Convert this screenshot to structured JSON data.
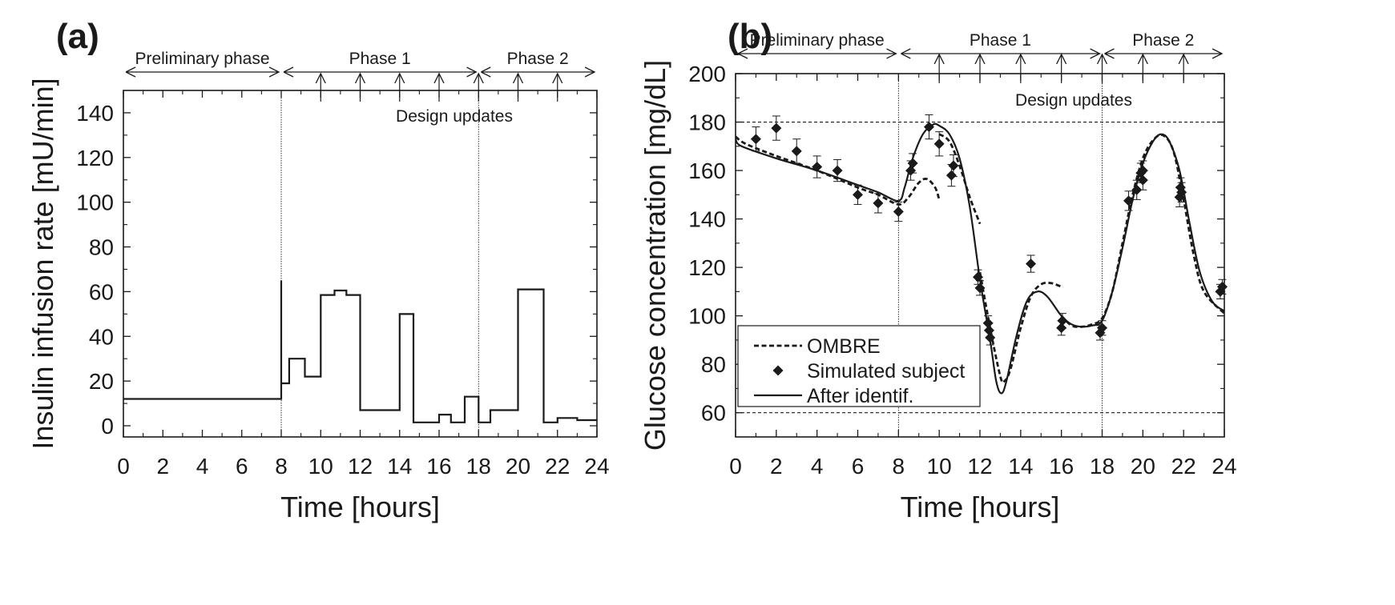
{
  "chart_data": [
    {
      "panel": "(a)",
      "type": "line",
      "step": true,
      "xlabel": "Time [hours]",
      "ylabel": "Insulin infusion rate [mU/min]",
      "xlim": [
        0,
        24
      ],
      "ylim": [
        -5,
        150
      ],
      "xticks": [
        0,
        2,
        4,
        6,
        8,
        10,
        12,
        14,
        16,
        18,
        20,
        22,
        24
      ],
      "yticks": [
        0,
        20,
        40,
        60,
        80,
        100,
        120,
        140
      ],
      "phases": [
        {
          "label": "Preliminary phase",
          "from": 0,
          "to": 8
        },
        {
          "label": "Phase 1",
          "from": 8,
          "to": 18
        },
        {
          "label": "Phase 2",
          "from": 18,
          "to": 24
        }
      ],
      "phase_boundaries": [
        8,
        18
      ],
      "design_update_times": [
        10,
        12,
        14,
        16,
        18,
        20,
        22
      ],
      "annotation": "Design updates",
      "profile": [
        [
          0,
          12
        ],
        [
          8,
          12
        ],
        [
          8,
          65
        ],
        [
          8,
          19
        ],
        [
          8.4,
          19
        ],
        [
          8.4,
          30
        ],
        [
          9.2,
          30
        ],
        [
          9.2,
          22
        ],
        [
          10,
          22
        ],
        [
          10,
          58.5
        ],
        [
          10.7,
          58.5
        ],
        [
          10.7,
          60.5
        ],
        [
          11.3,
          60.5
        ],
        [
          11.3,
          58.5
        ],
        [
          12,
          58.5
        ],
        [
          12,
          7
        ],
        [
          14,
          7
        ],
        [
          14,
          50
        ],
        [
          14.7,
          50
        ],
        [
          14.7,
          1.5
        ],
        [
          16,
          1.5
        ],
        [
          16,
          5
        ],
        [
          16.6,
          5
        ],
        [
          16.6,
          1.5
        ],
        [
          17.3,
          1.5
        ],
        [
          17.3,
          13
        ],
        [
          18,
          13
        ],
        [
          18,
          1.5
        ],
        [
          18.6,
          1.5
        ],
        [
          18.6,
          7
        ],
        [
          20,
          7
        ],
        [
          20,
          61
        ],
        [
          21.3,
          61
        ],
        [
          21.3,
          1.5
        ],
        [
          22,
          1.5
        ],
        [
          22,
          3.5
        ],
        [
          23,
          3.5
        ],
        [
          23,
          2.5
        ],
        [
          24,
          2.5
        ]
      ]
    },
    {
      "panel": "(b)",
      "type": "line",
      "xlabel": "Time [hours]",
      "ylabel": "Glucose concentration [mg/dL]",
      "xlim": [
        0,
        24
      ],
      "ylim": [
        50,
        200
      ],
      "xticks": [
        0,
        2,
        4,
        6,
        8,
        10,
        12,
        14,
        16,
        18,
        20,
        22,
        24
      ],
      "yticks": [
        60,
        80,
        100,
        120,
        140,
        160,
        180,
        200
      ],
      "thresholds": [
        60,
        180
      ],
      "phases": [
        {
          "label": "Preliminary phase",
          "from": 0,
          "to": 8
        },
        {
          "label": "Phase 1",
          "from": 8,
          "to": 18
        },
        {
          "label": "Phase 2",
          "from": 18,
          "to": 24
        }
      ],
      "phase_boundaries": [
        8,
        18
      ],
      "design_update_times": [
        10,
        12,
        14,
        16,
        18,
        20,
        22
      ],
      "annotation": "Design updates",
      "legend_position": "bottom-left",
      "legend": [
        {
          "label": "OMBRE",
          "style": "dashed"
        },
        {
          "label": "Simulated subject",
          "style": "diamond"
        },
        {
          "label": "After identif.",
          "style": "solid"
        }
      ],
      "series": [
        {
          "name": "OMBRE",
          "style": "dashed",
          "segments": [
            [
              [
                0,
                174
              ],
              [
                0.5,
                171
              ],
              [
                2,
                166
              ],
              [
                4,
                160
              ],
              [
                6,
                153
              ],
              [
                7,
                150
              ],
              [
                8,
                146
              ],
              [
                8.5,
                149
              ],
              [
                9,
                155
              ],
              [
                9.4,
                156.5
              ],
              [
                9.8,
                153
              ],
              [
                10,
                148
              ]
            ],
            [
              [
                10,
                175
              ],
              [
                10.5,
                172
              ],
              [
                11,
                162
              ],
              [
                11.5,
                149
              ],
              [
                12,
                138
              ]
            ],
            [
              [
                12,
                118
              ],
              [
                12.5,
                95
              ],
              [
                13,
                75
              ],
              [
                13.2,
                73
              ],
              [
                13.5,
                78
              ],
              [
                14,
                95
              ],
              [
                14.5,
                108
              ],
              [
                15,
                113
              ],
              [
                15.5,
                113.5
              ],
              [
                16,
                112
              ]
            ],
            [
              [
                16,
                100
              ],
              [
                16.5,
                96
              ],
              [
                17,
                95.5
              ],
              [
                17.5,
                96.5
              ],
              [
                18,
                99
              ],
              [
                18.5,
                110
              ],
              [
                19,
                130
              ],
              [
                19.5,
                150
              ],
              [
                20,
                165
              ],
              [
                20.5,
                172.5
              ],
              [
                21,
                174.5
              ],
              [
                21.5,
                168
              ],
              [
                22,
                148
              ],
              [
                22.5,
                125
              ],
              [
                23,
                110
              ],
              [
                24,
                101
              ]
            ]
          ]
        },
        {
          "name": "After identif.",
          "style": "solid",
          "points": [
            [
              0,
              173
            ],
            [
              0.3,
              170
            ],
            [
              2,
              165
            ],
            [
              4,
              160
            ],
            [
              6,
              154
            ],
            [
              7,
              151
            ],
            [
              8,
              147.5
            ],
            [
              8.3,
              153
            ],
            [
              8.7,
              165
            ],
            [
              9.2,
              175
            ],
            [
              9.7,
              179
            ],
            [
              10,
              178.5
            ],
            [
              10.5,
              175
            ],
            [
              11,
              165
            ],
            [
              11.5,
              145
            ],
            [
              12,
              115
            ],
            [
              12.5,
              90
            ],
            [
              12.8,
              73
            ],
            [
              13.05,
              68
            ],
            [
              13.3,
              73
            ],
            [
              13.8,
              92
            ],
            [
              14.3,
              106
            ],
            [
              14.8,
              110
            ],
            [
              15.3,
              108
            ],
            [
              16,
              100
            ],
            [
              16.5,
              96.5
            ],
            [
              17,
              95.5
            ],
            [
              17.5,
              96
            ],
            [
              18,
              98
            ],
            [
              18.5,
              110
            ],
            [
              19,
              128
            ],
            [
              19.5,
              148
            ],
            [
              20,
              163
            ],
            [
              20.5,
              172
            ],
            [
              20.9,
              175
            ],
            [
              21.3,
              172
            ],
            [
              21.8,
              160
            ],
            [
              22.3,
              138
            ],
            [
              22.8,
              118
            ],
            [
              23.4,
              106
            ],
            [
              24,
              102
            ]
          ]
        },
        {
          "name": "Simulated subject",
          "style": "diamond",
          "points": [
            {
              "x": 1,
              "y": 173,
              "err": 5
            },
            {
              "x": 2,
              "y": 177.5,
              "err": 5
            },
            {
              "x": 3,
              "y": 168,
              "err": 5
            },
            {
              "x": 4,
              "y": 161.5,
              "err": 4.5
            },
            {
              "x": 5,
              "y": 160,
              "err": 4.5
            },
            {
              "x": 6,
              "y": 150,
              "err": 4
            },
            {
              "x": 7,
              "y": 146.5,
              "err": 4
            },
            {
              "x": 8,
              "y": 143,
              "err": 4
            },
            {
              "x": 8.6,
              "y": 160,
              "err": 4
            },
            {
              "x": 8.7,
              "y": 163,
              "err": 4
            },
            {
              "x": 9.5,
              "y": 178,
              "err": 5
            },
            {
              "x": 10,
              "y": 171,
              "err": 5
            },
            {
              "x": 10.6,
              "y": 158,
              "err": 4.5
            },
            {
              "x": 10.7,
              "y": 162,
              "err": 4.5
            },
            {
              "x": 11.9,
              "y": 116,
              "err": 3
            },
            {
              "x": 12,
              "y": 111.5,
              "err": 3
            },
            {
              "x": 12.4,
              "y": 97,
              "err": 3
            },
            {
              "x": 12.45,
              "y": 94,
              "err": 3
            },
            {
              "x": 12.5,
              "y": 91,
              "err": 3
            },
            {
              "x": 14.5,
              "y": 121.5,
              "err": 3.5
            },
            {
              "x": 16,
              "y": 95,
              "err": 3
            },
            {
              "x": 16.05,
              "y": 98,
              "err": 3
            },
            {
              "x": 17.9,
              "y": 93,
              "err": 3
            },
            {
              "x": 18,
              "y": 95,
              "err": 3
            },
            {
              "x": 19.3,
              "y": 147.5,
              "err": 4
            },
            {
              "x": 19.7,
              "y": 152,
              "err": 4
            },
            {
              "x": 19.9,
              "y": 159,
              "err": 4
            },
            {
              "x": 20,
              "y": 156,
              "err": 4
            },
            {
              "x": 20,
              "y": 160,
              "err": 4
            },
            {
              "x": 21.8,
              "y": 149,
              "err": 4
            },
            {
              "x": 21.85,
              "y": 153,
              "err": 4
            },
            {
              "x": 21.9,
              "y": 151,
              "err": 4
            },
            {
              "x": 23.8,
              "y": 110,
              "err": 3
            },
            {
              "x": 23.9,
              "y": 112,
              "err": 3
            }
          ]
        }
      ]
    }
  ]
}
